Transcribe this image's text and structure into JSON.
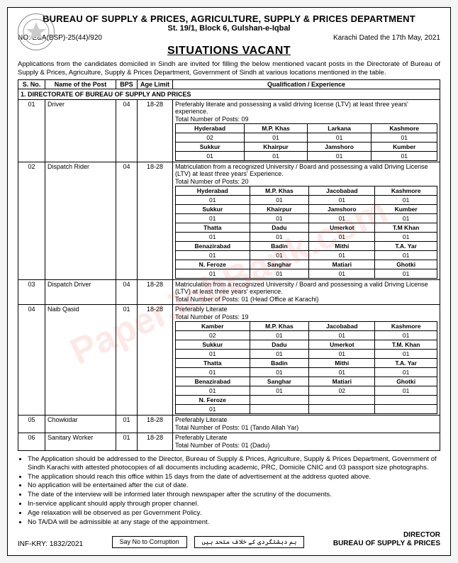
{
  "header": {
    "dept": "BUREAU OF SUPPLY & PRICES, AGRICULTURE, SUPPLY & PRICES DEPARTMENT",
    "addr": "St. 19/1, Block 6, Gulshan-e-Iqbal",
    "no": "NO: E&A(BSP)-25(44)/920",
    "date": "Karachi Dated the 17th May, 2021",
    "title": "SITUATIONS VACANT"
  },
  "intro": "Applications from the candidates domiciled in Sindh are invited for filling the below mentioned vacant posts in the Directorate of Bureau of Supply & Prices, Agriculture, Supply & Prices Department, Government of Sindh at various locations mentioned in the table.",
  "cols": {
    "sno": "S. No.",
    "name": "Name of the Post",
    "bps": "BPS",
    "age": "Age Limit",
    "qual": "Qualification / Experience"
  },
  "section": "1. DIRECTORATE OF BUREAU OF SUPPLY AND PRICES",
  "posts": [
    {
      "sno": "01",
      "name": "Driver",
      "bps": "04",
      "age": "18-28",
      "qual": "Preferably literate and possessing a valid driving license (LTV) at least three years' experience.",
      "total": "Total Number of Posts: 09",
      "loc_rows": [
        [
          [
            "Hyderabad",
            "02"
          ],
          [
            "M.P. Khas",
            "01"
          ],
          [
            "Larkana",
            "01"
          ],
          [
            "Kashmore",
            "01"
          ]
        ],
        [
          [
            "Sukkur",
            "01"
          ],
          [
            "Khairpur",
            "01"
          ],
          [
            "Jamshoro",
            "01"
          ],
          [
            "Kumber",
            "01"
          ]
        ]
      ]
    },
    {
      "sno": "02",
      "name": "Dispatch Rider",
      "bps": "04",
      "age": "18-28",
      "qual": "Matriculation from a recognized University / Board and possessing a valid Driving License (LTV) at least three years' Experience.",
      "total": "Total Number of Posts: 20",
      "loc_rows": [
        [
          [
            "Hyderabad",
            "01"
          ],
          [
            "M.P. Khas",
            "01"
          ],
          [
            "Jacobabad",
            "01"
          ],
          [
            "Kashmore",
            "01"
          ]
        ],
        [
          [
            "Sukkur",
            "01"
          ],
          [
            "Khairpur",
            "01"
          ],
          [
            "Jamshoro",
            "01"
          ],
          [
            "Kumber",
            "01"
          ]
        ],
        [
          [
            "Thatta",
            "01"
          ],
          [
            "Dadu",
            "01"
          ],
          [
            "Umerkot",
            "01"
          ],
          [
            "T.M Khan",
            "01"
          ]
        ],
        [
          [
            "Benazirabad",
            "01"
          ],
          [
            "Badin",
            "01"
          ],
          [
            "Mithi",
            "01"
          ],
          [
            "T.A. Yar",
            "01"
          ]
        ],
        [
          [
            "N. Feroze",
            "01"
          ],
          [
            "Sanghar",
            "01"
          ],
          [
            "Matiari",
            "01"
          ],
          [
            "Ghotki",
            "01"
          ]
        ]
      ]
    },
    {
      "sno": "03",
      "name": "Dispatch Driver",
      "bps": "04",
      "age": "18-28",
      "qual": "Matriculation from a recognized University / Board and possessing a valid Driving License (LTV) at least three years' experience.",
      "total": "Total Number of Posts: 01 (Head Office at Karachi)",
      "loc_rows": []
    },
    {
      "sno": "04",
      "name": "Naib Qasid",
      "bps": "01",
      "age": "18-28",
      "qual": "Preferably Literate",
      "total": "Total Number of Posts: 19",
      "loc_rows": [
        [
          [
            "Kamber",
            "02"
          ],
          [
            "M.P. Khas",
            "01"
          ],
          [
            "Jacobabad",
            "01"
          ],
          [
            "Kashmore",
            "01"
          ]
        ],
        [
          [
            "Sukkur",
            "01"
          ],
          [
            "Dadu",
            "01"
          ],
          [
            "Umerkot",
            "01"
          ],
          [
            "T.M. Khan",
            "01"
          ]
        ],
        [
          [
            "Thatta",
            "01"
          ],
          [
            "Badin",
            "01"
          ],
          [
            "Mithi",
            "01"
          ],
          [
            "T.A. Yar",
            "01"
          ]
        ],
        [
          [
            "Benazirabad",
            "01"
          ],
          [
            "Sanghar",
            "01"
          ],
          [
            "Matiari",
            "02"
          ],
          [
            "Ghotki",
            "01"
          ]
        ],
        [
          [
            "N. Feroze",
            "01"
          ],
          [
            "",
            ""
          ],
          [
            "",
            ""
          ],
          [
            "",
            ""
          ]
        ]
      ]
    },
    {
      "sno": "05",
      "name": "Chowkidar",
      "bps": "01",
      "age": "18-28",
      "qual": "Preferably Literate",
      "total": "Total Number of Posts: 01 (Tando Allah Yar)",
      "loc_rows": []
    },
    {
      "sno": "06",
      "name": "Sanitary Worker",
      "bps": "01",
      "age": "18-28",
      "qual": "Preferably Literate",
      "total": "Total Number of Posts: 01 (Dadu)",
      "loc_rows": []
    }
  ],
  "notes": [
    "The Application should be addressed to the Director, Bureau of Supply & Prices, Agriculture, Supply & Prices Department, Government of Sindh Karachi with attested photocopies of all documents including academic, PRC, Domicile CNIC and 03 passport size photographs.",
    "The application should reach this office within 15 days from the date of advertisement at the address quoted above.",
    "No application will be entertained after the cut of date.",
    "The date of the interview will be informed later through newspaper after the scrutiny of the documents.",
    "In-service applicant should apply through proper channel.",
    "Age relaxation will be observed as per Government Policy.",
    "No TA/DA will be admissible at any stage of the appointment."
  ],
  "footer": {
    "inf": "INF-KRY: 1832/2021",
    "box1": "Say No to Corruption",
    "box2": "ہم دہشتگردی کے خلاف متحد ہیں",
    "dir1": "DIRECTOR",
    "dir2": "BUREAU OF SUPPLY & PRICES"
  },
  "watermark": "PaperJobBank.com"
}
